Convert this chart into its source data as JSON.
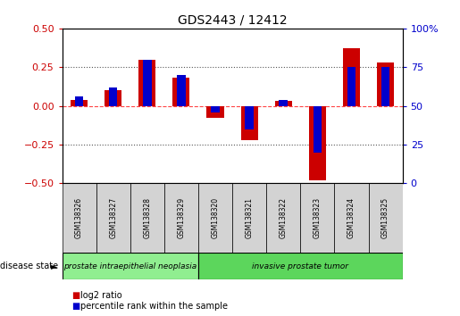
{
  "title": "GDS2443 / 12412",
  "samples": [
    "GSM138326",
    "GSM138327",
    "GSM138328",
    "GSM138329",
    "GSM138320",
    "GSM138321",
    "GSM138322",
    "GSM138323",
    "GSM138324",
    "GSM138325"
  ],
  "log2_ratio": [
    0.04,
    0.1,
    0.3,
    0.18,
    -0.08,
    -0.22,
    0.03,
    -0.48,
    0.37,
    0.28
  ],
  "percentile_rank": [
    56,
    62,
    80,
    70,
    46,
    35,
    54,
    20,
    75,
    75
  ],
  "disease_groups": [
    {
      "label": "prostate intraepithelial neoplasia",
      "start": 0,
      "end": 4,
      "color": "#90ee90"
    },
    {
      "label": "invasive prostate tumor",
      "start": 4,
      "end": 10,
      "color": "#5cd65c"
    }
  ],
  "ylim_left": [
    -0.5,
    0.5
  ],
  "ylim_right": [
    0,
    100
  ],
  "yticks_left": [
    -0.5,
    -0.25,
    0.0,
    0.25,
    0.5
  ],
  "yticks_right": [
    0,
    25,
    50,
    75,
    100
  ],
  "yticklabels_right": [
    "0",
    "25",
    "50",
    "75",
    "100%"
  ],
  "hlines": [
    -0.25,
    0.25
  ],
  "log2_color": "#cc0000",
  "percentile_color": "#0000cc",
  "zero_line_color": "#ff4444",
  "dot_line_color": "#555555",
  "sample_box_color": "#d3d3d3",
  "disease_label_color": "#000000",
  "legend_items": [
    "log2 ratio",
    "percentile rank within the sample"
  ]
}
